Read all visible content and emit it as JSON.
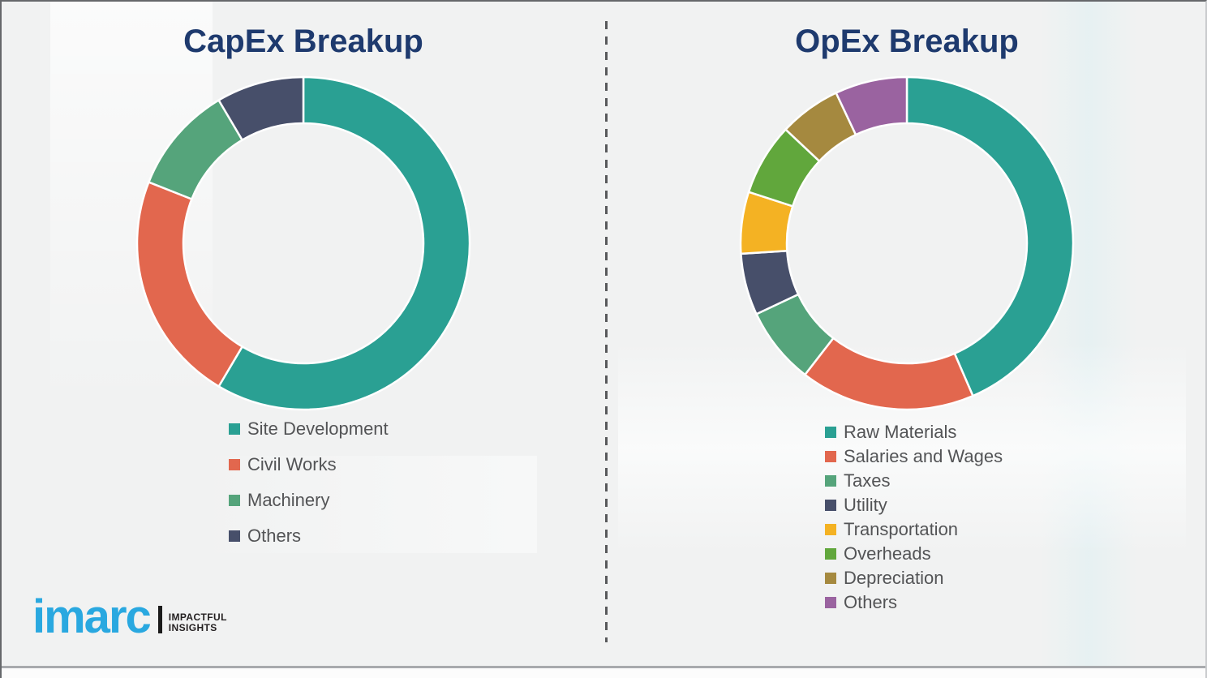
{
  "chart_data": [
    {
      "type": "pie",
      "donut": true,
      "title": "CapEx Breakup",
      "labels": [
        "Site Development",
        "Civil Works",
        "Machinery",
        "Others"
      ],
      "values": [
        58.5,
        22.5,
        10.5,
        8.5
      ],
      "values_note": "percent, estimated from arc angles (no data labels shown)",
      "colors": [
        "#2aa093",
        "#e2674e",
        "#55a47b",
        "#474f6a"
      ],
      "start_angle": 0,
      "direction": "clockwise",
      "legend_position": "below-left",
      "grid": false
    },
    {
      "type": "pie",
      "donut": true,
      "title": "OpEx Breakup",
      "labels": [
        "Raw Materials",
        "Salaries and Wages",
        "Taxes",
        "Utility",
        "Transportation",
        "Overheads",
        "Depreciation",
        "Others"
      ],
      "values": [
        43.5,
        17,
        7.5,
        6,
        6,
        7,
        6,
        7
      ],
      "values_note": "percent, estimated from arc angles (no data labels shown)",
      "colors": [
        "#2aa093",
        "#e2674e",
        "#55a47b",
        "#474f6a",
        "#f4b223",
        "#61a73c",
        "#a5893f",
        "#9a63a0"
      ],
      "start_angle": 0,
      "direction": "clockwise",
      "legend_position": "below-left",
      "grid": false
    }
  ],
  "logo": {
    "brand": "imarc",
    "tagline_1": "IMPACTFUL",
    "tagline_2": "INSIGHTS",
    "brand_color": "#29a8e0"
  },
  "style": {
    "title_color": "#1e3a6e",
    "background_color": "#f1f2f2",
    "legend_text_color": "#535456",
    "divider_color": "#58595b",
    "segment_gap_color": "#ffffff"
  }
}
